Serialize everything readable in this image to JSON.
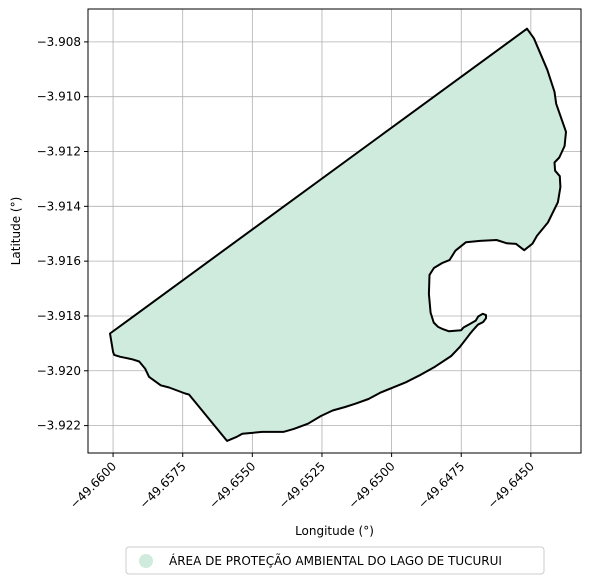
{
  "chart_data": {
    "type": "map",
    "xlabel": "Longitude (°)",
    "ylabel": "Latitude (°)",
    "xlim": [
      -49.6609,
      -49.6432
    ],
    "ylim": [
      -3.923,
      -3.9068
    ],
    "xticks": [
      -49.66,
      -49.6575,
      -49.655,
      -49.6525,
      -49.65,
      -49.6475,
      -49.645
    ],
    "xtick_labels": [
      "−49.6600",
      "−49.6575",
      "−49.6550",
      "−49.6525",
      "−49.6500",
      "−49.6475",
      "−49.6450"
    ],
    "yticks": [
      -3.908,
      -3.91,
      -3.912,
      -3.914,
      -3.916,
      -3.918,
      -3.92,
      -3.922
    ],
    "ytick_labels": [
      "−3.908",
      "−3.910",
      "−3.912",
      "−3.914",
      "−3.916",
      "−3.918",
      "−3.920",
      "−3.922"
    ],
    "grid": true,
    "legend_position": "bottom-center",
    "series": [
      {
        "name": "ÁREA DE PROTEÇÃO AMBIENTAL DO LAGO DE TUCURUI",
        "fill_color": "#cfebdd",
        "edge_color": "#000000",
        "polygon": [
          [
            -49.66011,
            -3.91864
          ],
          [
            -49.64514,
            -3.90752
          ],
          [
            -49.64489,
            -3.90787
          ],
          [
            -49.64441,
            -3.90902
          ],
          [
            -49.64415,
            -3.90982
          ],
          [
            -49.64409,
            -3.91026
          ],
          [
            -49.64374,
            -3.91128
          ],
          [
            -49.64379,
            -3.9118
          ],
          [
            -49.64398,
            -3.91222
          ],
          [
            -49.64415,
            -3.9124
          ],
          [
            -49.64413,
            -3.9127
          ],
          [
            -49.64396,
            -3.9129
          ],
          [
            -49.64394,
            -3.9133
          ],
          [
            -49.64403,
            -3.91385
          ],
          [
            -49.64439,
            -3.91459
          ],
          [
            -49.64478,
            -3.91507
          ],
          [
            -49.64494,
            -3.91536
          ],
          [
            -49.64524,
            -3.9156
          ],
          [
            -49.64553,
            -3.91537
          ],
          [
            -49.64586,
            -3.91535
          ],
          [
            -49.64623,
            -3.91523
          ],
          [
            -49.64683,
            -3.91526
          ],
          [
            -49.64733,
            -3.91531
          ],
          [
            -49.64771,
            -3.91562
          ],
          [
            -49.64792,
            -3.91596
          ],
          [
            -49.64819,
            -3.91607
          ],
          [
            -49.64848,
            -3.91625
          ],
          [
            -49.64864,
            -3.9165
          ],
          [
            -49.64866,
            -3.9172
          ],
          [
            -49.6486,
            -3.91788
          ],
          [
            -49.64849,
            -3.91824
          ],
          [
            -49.64833,
            -3.9184
          ],
          [
            -49.64816,
            -3.91848
          ],
          [
            -49.64794,
            -3.91856
          ],
          [
            -49.6475,
            -3.91852
          ],
          [
            -49.64742,
            -3.91842
          ],
          [
            -49.64724,
            -3.91832
          ],
          [
            -49.64698,
            -3.91817
          ],
          [
            -49.64689,
            -3.91802
          ],
          [
            -49.64673,
            -3.91792
          ],
          [
            -49.64661,
            -3.91797
          ],
          [
            -49.64661,
            -3.91808
          ],
          [
            -49.64671,
            -3.91822
          ],
          [
            -49.6469,
            -3.91832
          ],
          [
            -49.64707,
            -3.91851
          ],
          [
            -49.6472,
            -3.91867
          ],
          [
            -49.64735,
            -3.91887
          ],
          [
            -49.64756,
            -3.91914
          ],
          [
            -49.64786,
            -3.91946
          ],
          [
            -49.64844,
            -3.91985
          ],
          [
            -49.64902,
            -3.92018
          ],
          [
            -49.64949,
            -3.92042
          ],
          [
            -49.65041,
            -3.9208
          ],
          [
            -49.65083,
            -3.92103
          ],
          [
            -49.6513,
            -3.9212
          ],
          [
            -49.65167,
            -3.92132
          ],
          [
            -49.65212,
            -3.92145
          ],
          [
            -49.65254,
            -3.92165
          ],
          [
            -49.653,
            -3.92193
          ],
          [
            -49.65351,
            -3.92212
          ],
          [
            -49.65389,
            -3.92223
          ],
          [
            -49.65465,
            -3.92223
          ],
          [
            -49.65536,
            -3.9223
          ],
          [
            -49.65558,
            -3.92242
          ],
          [
            -49.65591,
            -3.92256
          ],
          [
            -49.65727,
            -3.92087
          ],
          [
            -49.65741,
            -3.92083
          ],
          [
            -49.65799,
            -3.92061
          ],
          [
            -49.65829,
            -3.92053
          ],
          [
            -49.65871,
            -3.92022
          ],
          [
            -49.65885,
            -3.91992
          ],
          [
            -49.65906,
            -3.91966
          ],
          [
            -49.65931,
            -3.91958
          ],
          [
            -49.65974,
            -3.91949
          ],
          [
            -49.65996,
            -3.91942
          ],
          [
            -49.66,
            -3.91932
          ]
        ]
      }
    ]
  }
}
